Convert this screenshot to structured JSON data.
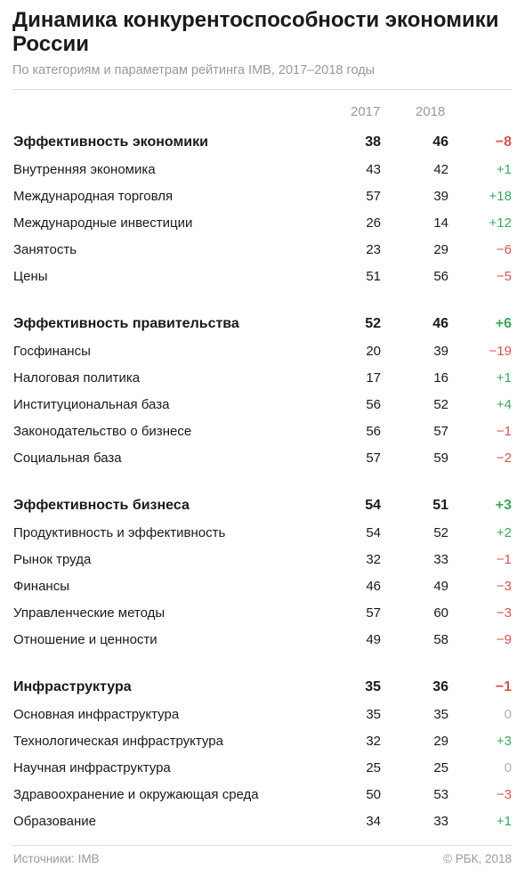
{
  "title": "Динамика конкурентоспособности экономики России",
  "subtitle": "По категориям и параметрам рейтинга IMB, 2017–2018 годы",
  "header": {
    "y2017": "2017",
    "y2018": "2018"
  },
  "footer": {
    "source": "Источники: IMB",
    "copyright": "© РБК, 2018"
  },
  "colors": {
    "positive": "#3aa85e",
    "negative": "#d9534f",
    "zero": "#b0b0b0"
  },
  "chart_data": {
    "type": "table",
    "columns": [
      "",
      "2017",
      "2018",
      ""
    ],
    "groups": [
      {
        "category": {
          "name": "Эффективность экономики",
          "v2017": "38",
          "v2018": "46",
          "change": "−8"
        },
        "rows": [
          {
            "name": "Внутренняя экономика",
            "v2017": "43",
            "v2018": "42",
            "change": "+1"
          },
          {
            "name": "Международная торговля",
            "v2017": "57",
            "v2018": "39",
            "change": "+18"
          },
          {
            "name": "Международные инвестиции",
            "v2017": "26",
            "v2018": "14",
            "change": "+12"
          },
          {
            "name": "Занятость",
            "v2017": "23",
            "v2018": "29",
            "change": "−6"
          },
          {
            "name": "Цены",
            "v2017": "51",
            "v2018": "56",
            "change": "−5"
          }
        ]
      },
      {
        "category": {
          "name": "Эффективность правительства",
          "v2017": "52",
          "v2018": "46",
          "change": "+6"
        },
        "rows": [
          {
            "name": "Госфинансы",
            "v2017": "20",
            "v2018": "39",
            "change": "−19"
          },
          {
            "name": "Налоговая политика",
            "v2017": "17",
            "v2018": "16",
            "change": "+1"
          },
          {
            "name": "Институциональная база",
            "v2017": "56",
            "v2018": "52",
            "change": "+4"
          },
          {
            "name": "Законодательство о бизнесе",
            "v2017": "56",
            "v2018": "57",
            "change": "−1"
          },
          {
            "name": "Социальная база",
            "v2017": "57",
            "v2018": "59",
            "change": "−2"
          }
        ]
      },
      {
        "category": {
          "name": "Эффективность бизнеса",
          "v2017": "54",
          "v2018": "51",
          "change": "+3"
        },
        "rows": [
          {
            "name": "Продуктивность и эффективность",
            "v2017": "54",
            "v2018": "52",
            "change": "+2"
          },
          {
            "name": "Рынок труда",
            "v2017": "32",
            "v2018": "33",
            "change": "−1"
          },
          {
            "name": "Финансы",
            "v2017": "46",
            "v2018": "49",
            "change": "−3"
          },
          {
            "name": "Управленческие методы",
            "v2017": "57",
            "v2018": "60",
            "change": "−3"
          },
          {
            "name": "Отношение и ценности",
            "v2017": "49",
            "v2018": "58",
            "change": "−9"
          }
        ]
      },
      {
        "category": {
          "name": "Инфраструктура",
          "v2017": "35",
          "v2018": "36",
          "change": "−1"
        },
        "rows": [
          {
            "name": "Основная инфраструктура",
            "v2017": "35",
            "v2018": "35",
            "change": "0"
          },
          {
            "name": "Технологическая инфраструктура",
            "v2017": "32",
            "v2018": "29",
            "change": "+3"
          },
          {
            "name": "Научная инфраструктура",
            "v2017": "25",
            "v2018": "25",
            "change": "0"
          },
          {
            "name": "Здравоохранение и окружающая среда",
            "v2017": "50",
            "v2018": "53",
            "change": "−3"
          },
          {
            "name": "Образование",
            "v2017": "34",
            "v2018": "33",
            "change": "+1"
          }
        ]
      }
    ]
  }
}
